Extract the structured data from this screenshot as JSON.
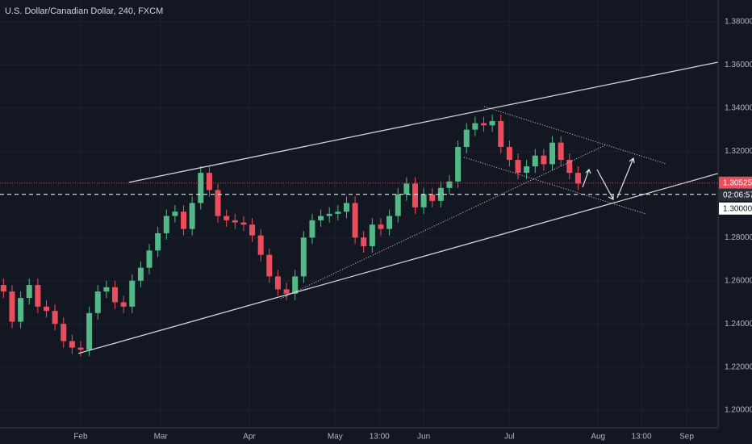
{
  "chart_data": {
    "type": "candlestick",
    "title": "U.S. Dollar/Canadian Dollar, 240, FXCM",
    "xlim": [
      2.77,
      254.0
    ],
    "ylim": [
      1.1918,
      1.3901
    ],
    "xticks": [
      {
        "value": 31,
        "label": "Feb"
      },
      {
        "value": 59,
        "label": "Mar"
      },
      {
        "value": 90,
        "label": "Apr"
      },
      {
        "value": 120,
        "label": "May"
      },
      {
        "value": 135.5,
        "label": "13:00"
      },
      {
        "value": 151,
        "label": "Jun"
      },
      {
        "value": 181,
        "label": "Jul"
      },
      {
        "value": 212,
        "label": "Aug"
      },
      {
        "value": 227.2,
        "label": "13:00"
      },
      {
        "value": 243,
        "label": "Sep"
      }
    ],
    "yticks": [
      {
        "value": 1.2,
        "label": "1.20000"
      },
      {
        "value": 1.22,
        "label": "1.22000"
      },
      {
        "value": 1.24,
        "label": "1.24000"
      },
      {
        "value": 1.26,
        "label": "1.26000"
      },
      {
        "value": 1.28,
        "label": "1.28000"
      },
      {
        "value": 1.32,
        "label": "1.32000"
      },
      {
        "value": 1.34,
        "label": "1.34000"
      },
      {
        "value": 1.36,
        "label": "1.36000"
      },
      {
        "value": 1.38,
        "label": "1.38000"
      }
    ],
    "grid": true,
    "up_color": "#53b987",
    "down_color": "#eb4d5c",
    "last_price": 1.30525,
    "countdown": "02:06:57",
    "horizontal_line": {
      "value": 1.3,
      "label": "1.30000"
    },
    "trend_lines": [
      {
        "x": [
          47.9,
          254.0
        ],
        "y": [
          1.3056,
          1.3613
        ],
        "style": "solid"
      },
      {
        "x": [
          30.2,
          254.0
        ],
        "y": [
          1.2263,
          1.3097
        ],
        "style": "solid"
      },
      {
        "x": [
          101,
          214.5
        ],
        "y": [
          1.2517,
          1.3228
        ],
        "style": "dotted"
      },
      {
        "x": [
          172.2,
          235.7
        ],
        "y": [
          1.3407,
          1.3142
        ],
        "style": "dotted"
      },
      {
        "x": [
          165.1,
          228.6
        ],
        "y": [
          1.3172,
          1.291
        ],
        "style": "dotted"
      }
    ],
    "x": [
      4,
      7,
      10,
      13,
      16,
      19,
      22,
      25,
      28,
      31,
      34,
      37,
      40,
      43,
      46,
      49,
      52,
      55,
      58,
      61,
      64,
      67,
      70,
      73,
      76,
      79,
      82,
      85,
      88,
      91,
      94,
      97,
      100,
      103,
      106,
      109,
      112,
      115,
      118,
      121,
      124,
      127,
      130,
      133,
      136,
      139,
      142,
      145,
      148,
      151,
      154,
      157,
      160,
      163,
      166,
      169,
      172,
      175,
      178,
      181,
      184,
      187,
      190,
      193,
      196,
      199,
      202,
      205
    ],
    "open": [
      1.258,
      1.255,
      1.241,
      1.252,
      1.258,
      1.248,
      1.246,
      1.24,
      1.232,
      1.229,
      1.228,
      1.245,
      1.255,
      1.257,
      1.25,
      1.248,
      1.26,
      1.266,
      1.274,
      1.282,
      1.29,
      1.292,
      1.284,
      1.296,
      1.31,
      1.302,
      1.29,
      1.288,
      1.287,
      1.286,
      1.281,
      1.272,
      1.262,
      1.256,
      1.254,
      1.262,
      1.28,
      1.288,
      1.29,
      1.291,
      1.292,
      1.296,
      1.28,
      1.276,
      1.286,
      1.284,
      1.29,
      1.3,
      1.305,
      1.294,
      1.3,
      1.297,
      1.303,
      1.306,
      1.322,
      1.33,
      1.333,
      1.332,
      1.334,
      1.322,
      1.316,
      1.31,
      1.313,
      1.318,
      1.314,
      1.324,
      1.316,
      1.31
    ],
    "high": [
      1.261,
      1.258,
      1.255,
      1.261,
      1.261,
      1.251,
      1.249,
      1.243,
      1.235,
      1.232,
      1.248,
      1.258,
      1.26,
      1.26,
      1.253,
      1.263,
      1.269,
      1.277,
      1.285,
      1.293,
      1.295,
      1.295,
      1.299,
      1.313,
      1.313,
      1.305,
      1.293,
      1.291,
      1.29,
      1.289,
      1.284,
      1.275,
      1.265,
      1.259,
      1.265,
      1.283,
      1.291,
      1.293,
      1.294,
      1.295,
      1.299,
      1.299,
      1.283,
      1.289,
      1.289,
      1.293,
      1.303,
      1.308,
      1.308,
      1.303,
      1.303,
      1.306,
      1.309,
      1.325,
      1.333,
      1.336,
      1.336,
      1.337,
      1.337,
      1.325,
      1.319,
      1.316,
      1.321,
      1.321,
      1.327,
      1.327,
      1.319,
      1.313
    ],
    "low": [
      1.252,
      1.238,
      1.238,
      1.249,
      1.245,
      1.243,
      1.237,
      1.229,
      1.226,
      1.225,
      1.225,
      1.242,
      1.252,
      1.247,
      1.245,
      1.245,
      1.257,
      1.263,
      1.271,
      1.279,
      1.287,
      1.281,
      1.281,
      1.293,
      1.299,
      1.287,
      1.285,
      1.284,
      1.283,
      1.278,
      1.269,
      1.259,
      1.253,
      1.251,
      1.251,
      1.259,
      1.277,
      1.285,
      1.287,
      1.288,
      1.289,
      1.277,
      1.273,
      1.273,
      1.281,
      1.281,
      1.287,
      1.297,
      1.291,
      1.291,
      1.294,
      1.294,
      1.3,
      1.303,
      1.319,
      1.327,
      1.329,
      1.329,
      1.319,
      1.313,
      1.307,
      1.307,
      1.31,
      1.311,
      1.311,
      1.313,
      1.307,
      1.302
    ],
    "close": [
      1.255,
      1.241,
      1.252,
      1.258,
      1.248,
      1.246,
      1.24,
      1.232,
      1.229,
      1.228,
      1.245,
      1.255,
      1.257,
      1.25,
      1.248,
      1.26,
      1.266,
      1.274,
      1.282,
      1.29,
      1.292,
      1.284,
      1.296,
      1.31,
      1.302,
      1.29,
      1.288,
      1.287,
      1.286,
      1.281,
      1.272,
      1.262,
      1.256,
      1.254,
      1.262,
      1.28,
      1.288,
      1.29,
      1.291,
      1.292,
      1.296,
      1.28,
      1.276,
      1.286,
      1.284,
      1.29,
      1.3,
      1.305,
      1.294,
      1.3,
      1.297,
      1.303,
      1.306,
      1.322,
      1.33,
      1.333,
      1.332,
      1.334,
      1.322,
      1.316,
      1.31,
      1.313,
      1.318,
      1.314,
      1.324,
      1.316,
      1.31,
      1.305
    ]
  }
}
